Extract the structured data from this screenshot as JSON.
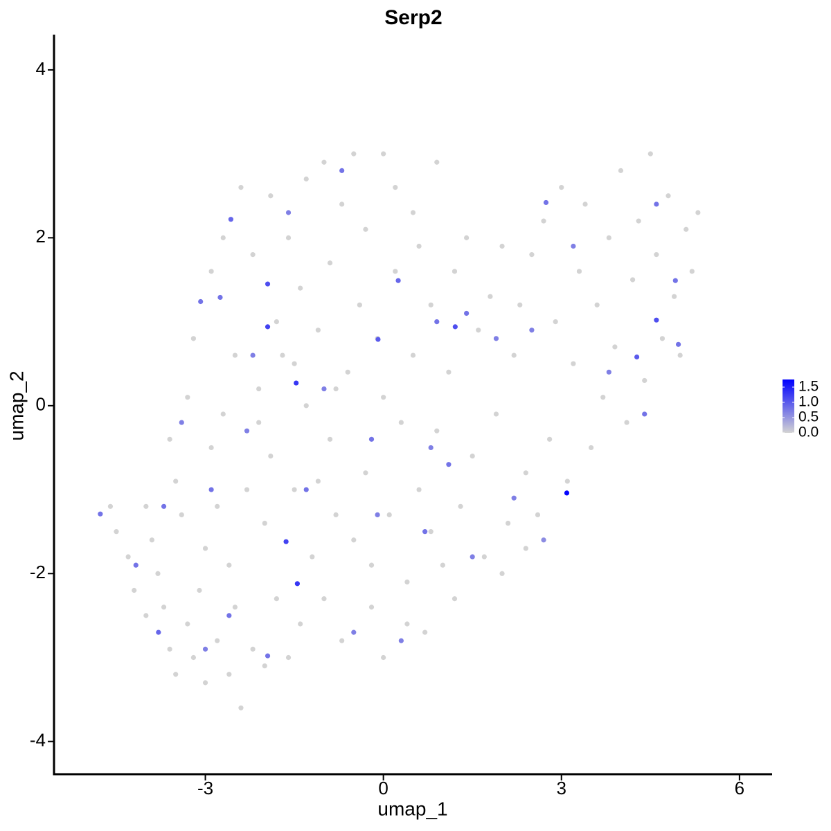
{
  "chart_data": {
    "type": "scatter",
    "title": "Serp2",
    "x_label": "umap_1",
    "y_label": "umap_2",
    "xlim": [
      -5.55,
      6.55
    ],
    "ylim": [
      -4.39,
      4.42
    ],
    "xticks": [
      -3,
      0,
      3,
      6
    ],
    "yticks": [
      -4,
      -2,
      0,
      2,
      4
    ],
    "grid": false,
    "colorbar": {
      "lim": [
        0,
        1.75
      ],
      "ticks": [
        {
          "value": 0,
          "label": "0.0"
        },
        0.5,
        {
          "value": 1,
          "label": "1.0"
        },
        1.5
      ],
      "low_color": "#d3d3d3",
      "high_color": "#0000ff"
    },
    "series": [
      {
        "x": [
          -4.6,
          -4.5,
          -4.3,
          -4.2,
          -4.0,
          -3.9,
          -3.8,
          -3.7,
          -3.6,
          -3.5,
          -3.4,
          -3.3,
          -3.2,
          -3.1,
          -3.0,
          -3.0,
          -2.9,
          -2.8,
          -2.8,
          -2.7,
          -2.6,
          -2.6,
          -2.5,
          -2.5,
          -2.4,
          -2.3,
          -2.2,
          -2.2,
          -2.1,
          -2.0,
          -2.0,
          -1.9,
          -1.9,
          -1.8,
          -1.8,
          -1.7,
          -1.6,
          -1.6,
          -1.5,
          -1.4,
          -1.4,
          -1.3,
          -1.3,
          -1.2,
          -1.1,
          -1.0,
          -1.0,
          -0.9,
          -0.9,
          -0.8,
          -0.7,
          -0.7,
          -0.6,
          -0.5,
          -0.5,
          -0.4,
          -0.3,
          -0.3,
          -0.2,
          -0.1,
          0.0,
          0.0,
          0.1,
          0.2,
          0.2,
          0.3,
          0.4,
          0.5,
          0.5,
          0.6,
          0.7,
          0.8,
          0.9,
          0.9,
          1.0,
          1.1,
          1.2,
          1.3,
          1.4,
          1.5,
          1.6,
          1.7,
          1.8,
          1.9,
          2.0,
          2.1,
          2.2,
          2.3,
          2.4,
          2.5,
          2.6,
          2.7,
          2.8,
          2.9,
          3.0,
          3.1,
          3.2,
          3.3,
          3.4,
          3.5,
          3.6,
          3.7,
          3.8,
          3.9,
          4.0,
          4.1,
          4.2,
          4.3,
          4.4,
          4.5,
          4.6,
          4.7,
          4.8,
          4.9,
          5.0,
          5.1,
          5.2,
          5.3,
          -3.6,
          -3.3,
          -3.2,
          -2.9,
          -2.7,
          -2.4,
          -3.5,
          -4.0,
          -2.1,
          -1.5,
          -0.8,
          0.4,
          -0.2,
          1.2,
          0.8,
          2.0,
          2.4,
          0.0,
          0.6,
          -1.1,
          -4.77,
          3.09,
          -1.47,
          -1.64,
          -1.45,
          -1.95,
          -1.95,
          1.21,
          4.6,
          4.27,
          -2.57,
          -2.75,
          -3.08,
          -3.79,
          -4.17,
          4.92,
          2.74,
          4.97,
          -0.09,
          0.25,
          -1.95,
          -2.3,
          -3.4,
          -1.0,
          0.8,
          1.1,
          1.9,
          2.2,
          3.8,
          4.4,
          3.2,
          -0.7,
          -1.6,
          0.9,
          0.3,
          -0.5,
          -2.6,
          -3.0,
          0.7,
          1.5,
          2.7,
          -0.1,
          -1.3,
          2.5,
          -2.2,
          4.6,
          1.4,
          -0.2,
          -3.7,
          -2.9
        ],
        "y": [
          -1.2,
          -1.5,
          -1.8,
          -2.2,
          -2.5,
          -1.6,
          -2.0,
          -2.4,
          -2.9,
          -3.2,
          -1.3,
          -2.6,
          -3.0,
          -2.2,
          -1.7,
          -3.3,
          -0.5,
          -1.2,
          -2.8,
          -0.1,
          -1.9,
          -3.2,
          0.6,
          -2.4,
          -3.6,
          -1.0,
          -2.9,
          1.8,
          0.2,
          -3.1,
          -1.4,
          2.5,
          -0.6,
          1.0,
          -2.3,
          0.6,
          -3.0,
          2.0,
          -1.0,
          1.4,
          -2.6,
          2.7,
          0.0,
          -1.8,
          0.9,
          2.9,
          -2.3,
          -0.4,
          1.7,
          -1.3,
          2.4,
          -2.8,
          0.4,
          3.0,
          -1.6,
          1.2,
          -0.8,
          2.1,
          -2.4,
          0.8,
          3.0,
          -3.0,
          -1.3,
          1.6,
          2.6,
          -0.2,
          -2.1,
          2.3,
          0.6,
          -1.0,
          -2.7,
          1.2,
          2.9,
          -0.3,
          -1.9,
          0.4,
          1.6,
          -1.2,
          2.0,
          -0.6,
          0.9,
          -1.8,
          1.3,
          -0.1,
          1.9,
          -1.4,
          0.6,
          1.2,
          -0.8,
          1.8,
          -1.3,
          2.2,
          -0.4,
          1.0,
          2.6,
          -0.9,
          0.5,
          1.6,
          2.4,
          -0.5,
          1.2,
          0.1,
          2.0,
          0.7,
          2.8,
          -0.2,
          1.5,
          2.2,
          0.3,
          3.0,
          1.8,
          0.8,
          2.5,
          1.3,
          0.6,
          2.1,
          1.6,
          2.3,
          -0.4,
          0.1,
          0.8,
          1.6,
          2.0,
          2.6,
          -0.9,
          -1.2,
          -0.2,
          0.5,
          0.2,
          -2.6,
          -1.9,
          -2.3,
          -1.5,
          -2.0,
          -1.7,
          0.1,
          1.9,
          -0.9,
          -1.29,
          -1.04,
          0.27,
          -1.62,
          -2.12,
          1.45,
          0.94,
          0.94,
          1.02,
          0.58,
          2.22,
          1.29,
          1.24,
          -2.7,
          -1.9,
          1.49,
          2.42,
          0.73,
          0.79,
          1.49,
          -2.98,
          -0.3,
          -0.2,
          0.2,
          -0.5,
          -0.7,
          0.8,
          -1.1,
          0.4,
          -0.1,
          1.9,
          2.8,
          2.3,
          1.0,
          -2.8,
          -2.7,
          -2.5,
          -2.9,
          -1.5,
          -1.8,
          -1.6,
          -1.3,
          -1.0,
          0.9,
          0.6,
          2.4,
          1.1,
          -0.4,
          -1.2,
          -1.0
        ],
        "values": [
          0,
          0,
          0,
          0,
          0,
          0,
          0,
          0,
          0,
          0,
          0,
          0,
          0,
          0,
          0,
          0,
          0,
          0,
          0,
          0,
          0,
          0,
          0,
          0,
          0,
          0,
          0,
          0,
          0,
          0,
          0,
          0,
          0,
          0,
          0,
          0,
          0,
          0,
          0,
          0,
          0,
          0,
          0,
          0,
          0,
          0,
          0,
          0,
          0,
          0,
          0,
          0,
          0,
          0,
          0,
          0,
          0,
          0,
          0,
          0,
          0,
          0,
          0,
          0,
          0,
          0,
          0,
          0,
          0,
          0,
          0,
          0,
          0,
          0,
          0,
          0,
          0,
          0,
          0,
          0,
          0,
          0,
          0,
          0,
          0,
          0,
          0,
          0,
          0,
          0,
          0,
          0,
          0,
          0,
          0,
          0,
          0,
          0,
          0,
          0,
          0,
          0,
          0,
          0,
          0,
          0,
          0,
          0,
          0,
          0,
          0,
          0,
          0,
          0,
          0,
          0,
          0,
          0,
          0,
          0,
          0,
          0,
          0,
          0,
          0,
          0,
          0,
          0,
          0,
          0,
          0,
          0,
          0,
          0,
          0,
          0,
          0,
          0,
          0.8,
          1.7,
          1.3,
          1.2,
          1.3,
          1.1,
          1.2,
          1.1,
          1.1,
          1.0,
          0.9,
          0.8,
          0.8,
          0.9,
          0.8,
          0.8,
          0.8,
          0.8,
          1.0,
          0.9,
          0.8,
          0.7,
          0.7,
          0.7,
          0.7,
          0.8,
          0.7,
          0.7,
          0.7,
          0.8,
          0.7,
          0.8,
          0.7,
          0.8,
          0.7,
          0.7,
          0.8,
          0.7,
          0.8,
          0.7,
          0.6,
          0.7,
          0.8,
          0.7,
          0.7,
          0.8,
          0.8,
          0.8,
          0.8,
          0.8
        ]
      }
    ]
  }
}
